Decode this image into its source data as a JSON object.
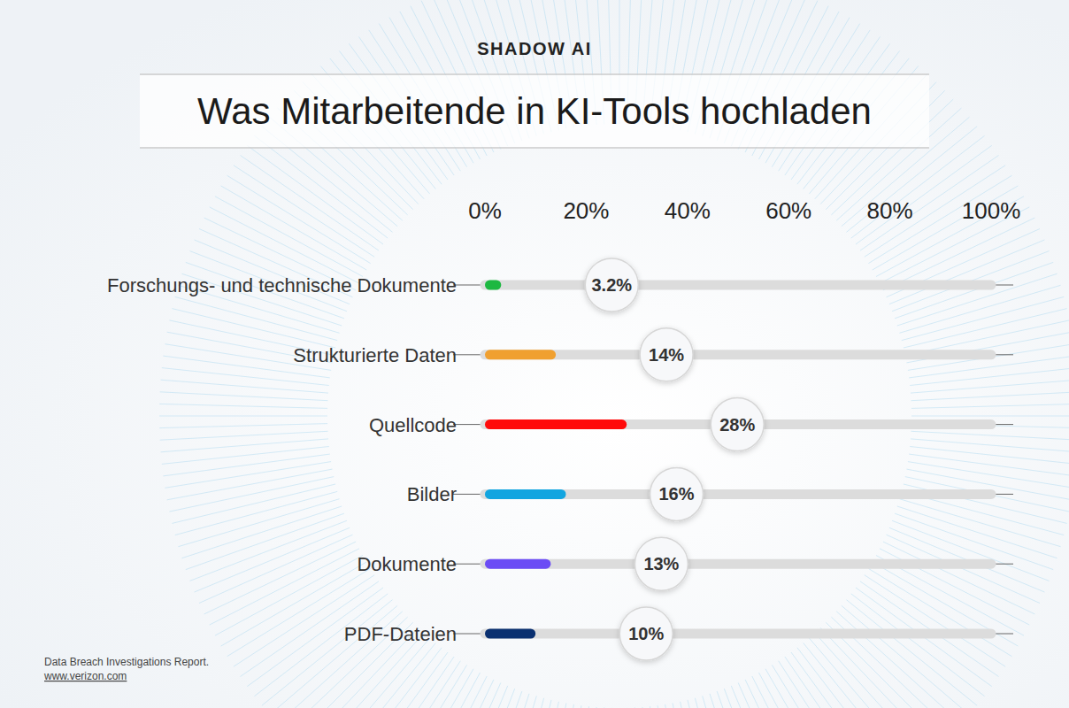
{
  "chart_data": {
    "type": "bar",
    "orientation": "horizontal",
    "subtitle": "SHADOW AI",
    "title": "Was Mitarbeitende in KI-Tools hochladen",
    "categories": [
      "Forschungs- und technische Dokumente",
      "Strukturierte Daten",
      "Quellcode",
      "Bilder",
      "Dokumente",
      "PDF-Dateien"
    ],
    "values": [
      3.2,
      14,
      28,
      16,
      13,
      10
    ],
    "value_labels": [
      "3.2%",
      "14%",
      "28%",
      "16%",
      "13%",
      "10%"
    ],
    "colors": [
      "#1db841",
      "#f0a030",
      "#ff0a0a",
      "#12a5e0",
      "#6b4cf5",
      "#0a3070"
    ],
    "xlim": [
      0,
      100
    ],
    "xticks": [
      {
        "value": 0,
        "label": "0%"
      },
      {
        "value": 20,
        "label": "20%"
      },
      {
        "value": 40,
        "label": "40%"
      },
      {
        "value": 60,
        "label": "60%"
      },
      {
        "value": 80,
        "label": "80%"
      },
      {
        "value": 100,
        "label": "100%"
      }
    ],
    "grid": false,
    "data_labels": true,
    "annotations": [
      "Data Breach Investigations Report.",
      "www.verizon.com"
    ]
  }
}
